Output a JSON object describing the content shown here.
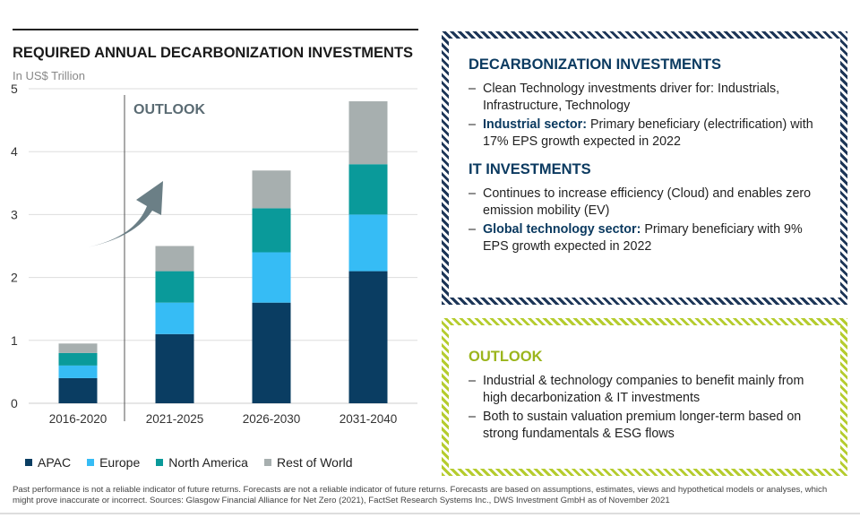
{
  "title": "REQUIRED ANNUAL DECARBONIZATION INVESTMENTS",
  "unit": "In US$ Trillion",
  "chart_data": {
    "type": "bar",
    "stacked": true,
    "categories": [
      "2016-2020",
      "2021-2025",
      "2026-2030",
      "2031-2040"
    ],
    "series": [
      {
        "name": "APAC",
        "values": [
          0.4,
          1.1,
          1.6,
          2.1
        ],
        "color": "#0a3d62"
      },
      {
        "name": "Europe",
        "values": [
          0.2,
          0.5,
          0.8,
          0.9
        ],
        "color": "#36bcf5"
      },
      {
        "name": "North America",
        "values": [
          0.2,
          0.5,
          0.7,
          0.8
        ],
        "color": "#0a9a9a"
      },
      {
        "name": "Rest of World",
        "values": [
          0.15,
          0.4,
          0.6,
          1.0
        ],
        "color": "#a7afaf"
      }
    ],
    "ylim": [
      0,
      5
    ],
    "yticks": [
      "0",
      "1",
      "2",
      "3",
      "4",
      "5"
    ],
    "grid": true,
    "annotation": "OUTLOOK",
    "legend": "bottom"
  },
  "panel1": {
    "heading1": "DECARBONIZATION INVESTMENTS",
    "b1": "Clean Technology investments driver for: Industrials, Infrastructure, Technology",
    "b2_bold": "Industrial sector:",
    "b2": " Primary beneficiary (electrification) with 17% EPS growth expected in 2022",
    "heading2": "IT INVESTMENTS",
    "b3": "Continues to increase efficiency (Cloud) and enables zero emission mobility (EV)",
    "b4_bold": "Global technology sector:",
    "b4": " Primary beneficiary with 9% EPS growth expected in 2022"
  },
  "panel2": {
    "heading": "OUTLOOK",
    "b1": "Industrial & technology companies to benefit mainly from high decarbonization & IT investments",
    "b2": "Both to sustain valuation premium longer-term based on strong fundamentals & ESG flows"
  },
  "footer": "Past performance is not a reliable indicator of future returns. Forecasts are not a reliable indicator of future returns. Forecasts are based on assumptions, estimates, views and hypothetical models or analyses, which might prove inaccurate or incorrect. Sources: Glasgow Financial Alliance for Net Zero (2021), FactSet Research Systems Inc., DWS Investment GmbH as of November 2021"
}
